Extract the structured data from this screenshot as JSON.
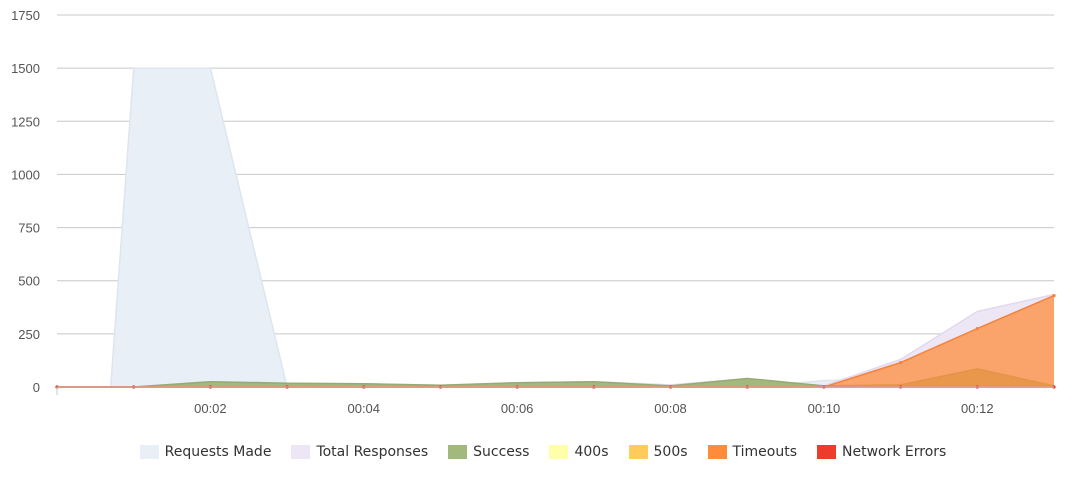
{
  "chart_data": {
    "type": "area",
    "title": "",
    "xlabel": "",
    "ylabel": "",
    "x": [
      0,
      1,
      2,
      3,
      4,
      5,
      6,
      7,
      8,
      9,
      10,
      11,
      12,
      13
    ],
    "x_tick_labels": [
      "00:02",
      "00:04",
      "00:06",
      "00:08",
      "00:10",
      "00:12"
    ],
    "x_tick_values": [
      2,
      4,
      6,
      8,
      10,
      12
    ],
    "x_range": [
      0,
      13
    ],
    "y_ticks": [
      0,
      250,
      500,
      750,
      1000,
      1250,
      1500,
      1750
    ],
    "ylim": [
      0,
      1750
    ],
    "grid": true,
    "legend_position": "bottom",
    "series": [
      {
        "name": "Requests Made",
        "color": "#e8eff6",
        "stroke": "#dde6ef",
        "opacity": 1,
        "x": [
          0,
          0.7,
          1,
          2,
          3,
          4,
          5,
          6,
          7,
          8,
          9,
          10,
          11,
          12,
          13
        ],
        "values": [
          0,
          0,
          1500,
          1500,
          0,
          0,
          0,
          0,
          0,
          0,
          0,
          30,
          40,
          55,
          60
        ]
      },
      {
        "name": "Total Responses",
        "color": "#ece6f5",
        "stroke": "#e2d9ef",
        "opacity": 1,
        "values": [
          0,
          0,
          25,
          18,
          15,
          8,
          20,
          25,
          10,
          40,
          5,
          130,
          355,
          435
        ]
      },
      {
        "name": "Success",
        "color": "#a2b87d",
        "stroke": "#95ab70",
        "opacity": 1,
        "values": [
          0,
          0,
          25,
          18,
          15,
          8,
          20,
          25,
          5,
          40,
          5,
          10,
          85,
          5
        ]
      },
      {
        "name": "400s",
        "color": "#ffffaa",
        "stroke": "#f0f08a",
        "opacity": 1,
        "values": [
          0,
          0,
          0,
          0,
          0,
          0,
          0,
          0,
          0,
          0,
          0,
          0,
          0,
          0
        ]
      },
      {
        "name": "500s",
        "color": "#ffcc5c",
        "stroke": "#f0bb45",
        "opacity": 1,
        "values": [
          0,
          0,
          0,
          0,
          0,
          0,
          0,
          0,
          0,
          0,
          0,
          0,
          0,
          0
        ]
      },
      {
        "name": "Timeouts",
        "color": "#ff8c3b",
        "stroke": "#f6823a",
        "opacity": 0.75,
        "values": [
          0,
          0,
          0,
          0,
          0,
          0,
          0,
          0,
          0,
          0,
          0,
          115,
          275,
          430
        ]
      },
      {
        "name": "Network Errors",
        "color": "#ee3b2b",
        "stroke": "#e33a2a",
        "opacity": 1,
        "values": [
          0,
          0,
          0,
          0,
          0,
          0,
          0,
          0,
          0,
          0,
          0,
          0,
          0,
          0
        ]
      }
    ]
  },
  "legend": {
    "items": [
      {
        "label": "Requests Made",
        "color": "#e8eff6"
      },
      {
        "label": "Total Responses",
        "color": "#ece6f5"
      },
      {
        "label": "Success",
        "color": "#a2b87d"
      },
      {
        "label": "400s",
        "color": "#ffffaa"
      },
      {
        "label": "500s",
        "color": "#ffcc5c"
      },
      {
        "label": "Timeouts",
        "color": "#ff8c3b"
      },
      {
        "label": "Network Errors",
        "color": "#ee3b2b"
      }
    ]
  }
}
